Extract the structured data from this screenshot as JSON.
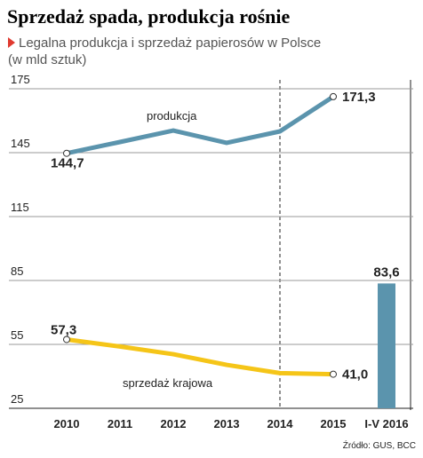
{
  "chart_data": {
    "type": "line",
    "title": "Sprzedaż spada, produkcja rośnie",
    "subtitle": "Legalna produkcja i sprzedaż papierosów w Polsce",
    "unit_note": "(w mld sztuk)",
    "source": "Źródło: GUS, BCC",
    "categories": [
      "2010",
      "2011",
      "2012",
      "2013",
      "2014",
      "2015",
      "I-V 2016"
    ],
    "series": [
      {
        "name": "produkcja",
        "type": "line",
        "color": "#5b94ad",
        "values": [
          144.7,
          150,
          155.4,
          149.6,
          155,
          171.3,
          null
        ],
        "value_labels": [
          "144,7",
          null,
          null,
          null,
          null,
          "171,3",
          null
        ]
      },
      {
        "name": "sprzedaż krajowa",
        "type": "line",
        "color": "#f5c518",
        "values": [
          57.3,
          54,
          50.4,
          45.4,
          41.5,
          41.0,
          null
        ],
        "value_labels": [
          "57,3",
          null,
          null,
          null,
          null,
          "41,0",
          null
        ]
      },
      {
        "type": "bar",
        "color": "#5b94ad",
        "values": [
          null,
          null,
          null,
          null,
          null,
          null,
          83.6
        ],
        "value_labels": [
          null,
          null,
          null,
          null,
          null,
          null,
          "83,6"
        ]
      }
    ],
    "ylim": [
      25,
      175
    ],
    "yticks": [
      25,
      55,
      85,
      115,
      145,
      175
    ],
    "grid": true
  }
}
